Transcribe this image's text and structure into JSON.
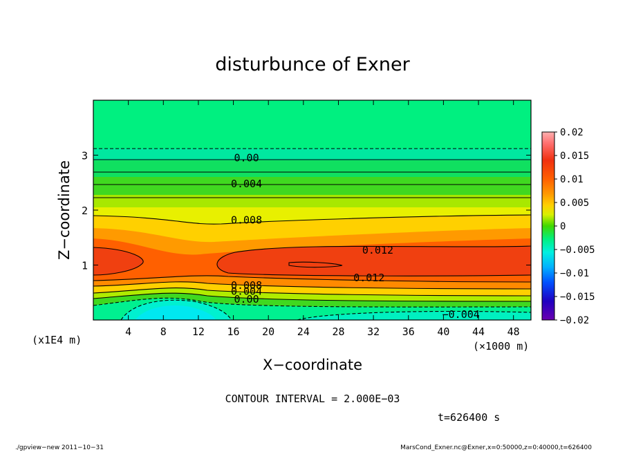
{
  "chart_data": {
    "type": "heatmap",
    "title": "disturbunce of Exner",
    "xlabel": "X−coordinate",
    "ylabel": "Z−coordinate",
    "x_unit": "(×1000 m)",
    "y_unit": "(x1E4 m)",
    "xlim": [
      0,
      50
    ],
    "ylim": [
      0,
      4
    ],
    "x_ticks": [
      "4",
      "8",
      "12",
      "16",
      "20",
      "24",
      "28",
      "32",
      "36",
      "40",
      "44",
      "48"
    ],
    "y_ticks": [
      "1",
      "2",
      "3"
    ],
    "colorbar": {
      "range": [
        -0.02,
        0.02
      ],
      "tick_labels": [
        "0.02",
        "0.015",
        "0.01",
        "0.005",
        "0",
        "−0.005",
        "−0.01",
        "−0.015",
        "−0.02"
      ]
    },
    "contour_interval": "CONTOUR INTERVAL = 2.000E−03",
    "contour_labels": [
      {
        "text": "0.00",
        "x": 17.5,
        "y": 2.95
      },
      {
        "text": "0.004",
        "x": 17.5,
        "y": 2.48
      },
      {
        "text": "0.008",
        "x": 17.5,
        "y": 1.82
      },
      {
        "text": "0.012",
        "x": 32.5,
        "y": 1.27
      },
      {
        "text": "0.012",
        "x": 31.5,
        "y": 0.77
      },
      {
        "text": "0.008",
        "x": 17.5,
        "y": 0.63
      },
      {
        "text": "0.004",
        "x": 17.5,
        "y": 0.52
      },
      {
        "text": "0.00",
        "x": 17.5,
        "y": 0.38
      },
      {
        "text": "−0.004",
        "x": 42.0,
        "y": 0.1
      }
    ],
    "legend": "colorbar-right",
    "grid": false
  },
  "time_label": "t=626400 s",
  "footer": {
    "left": "./gpview−new   2011−10−31",
    "right": "MarsCond_Exner.nc@Exner,x=0:50000,z=0:40000,t=626400"
  }
}
